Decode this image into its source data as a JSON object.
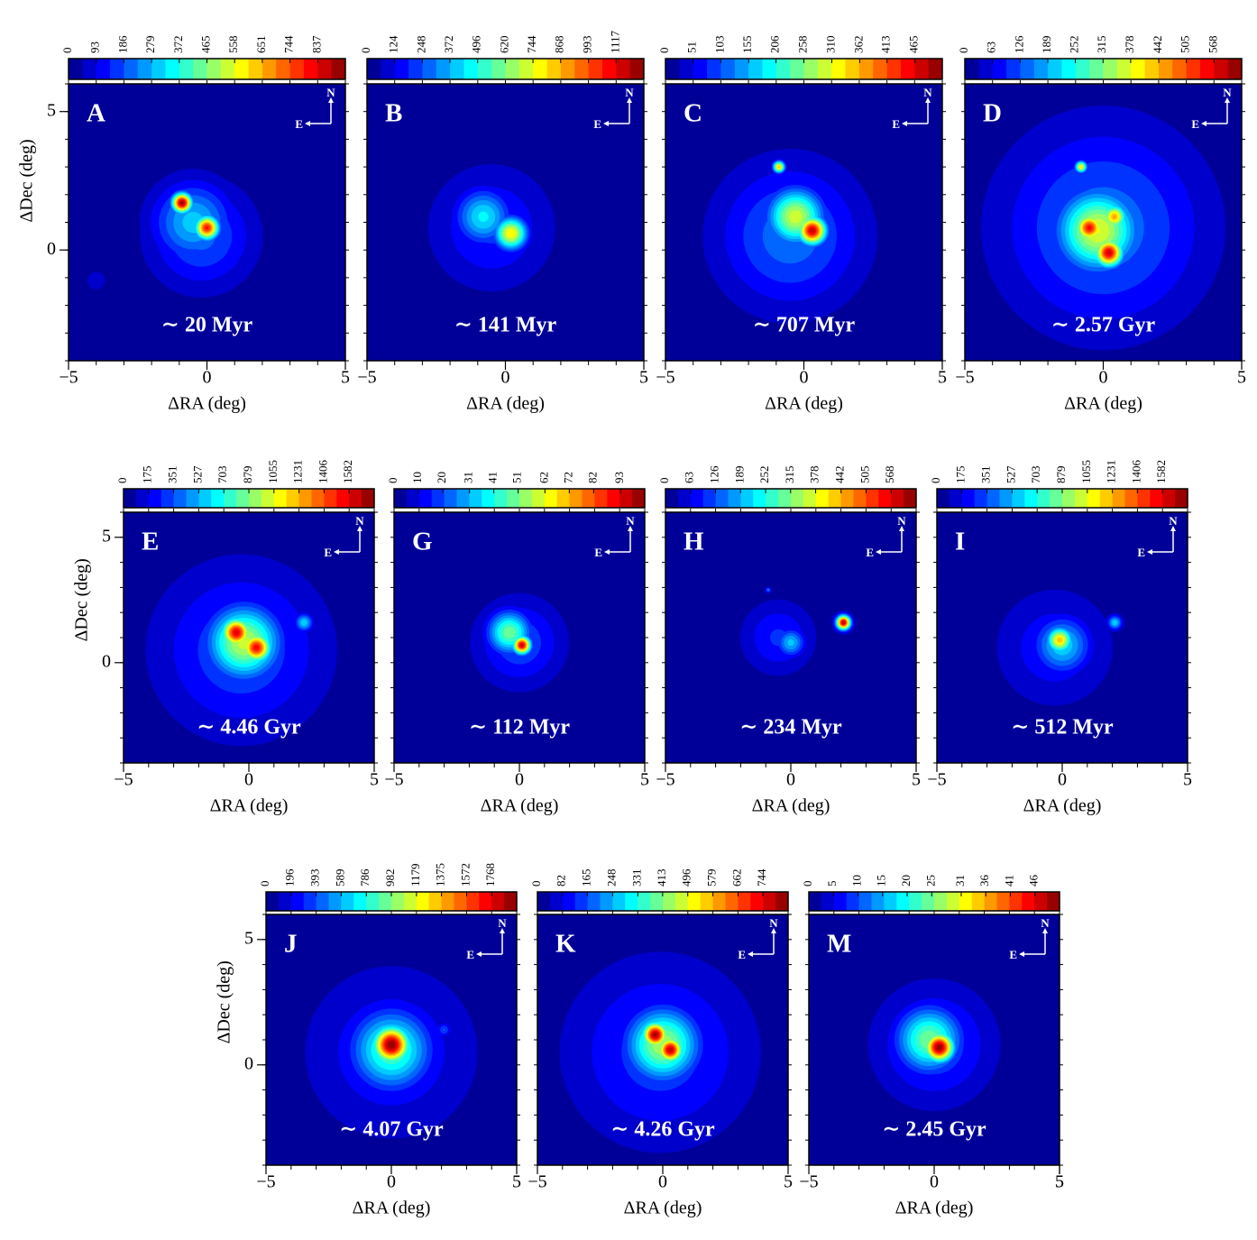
{
  "chart_data": [
    {
      "type": "heatmap",
      "panel": "A",
      "annotation": "∼ 20 Myr",
      "xlabel": "ΔRA (deg)",
      "ylabel": "ΔDec (deg)",
      "north": "N",
      "east": "E",
      "colormap": "jet",
      "xlim": [
        -5,
        5
      ],
      "ylim": [
        -4,
        6
      ],
      "xticks": [
        {
          "value": -5,
          "label": "−5"
        },
        0,
        5
      ],
      "yticks": [
        0,
        5
      ],
      "clim": [
        0,
        930
      ],
      "cticks": [
        0,
        93,
        186,
        279,
        372,
        465,
        558,
        651,
        744,
        837
      ],
      "sources": [
        {
          "ra": -0.5,
          "dec": 1,
          "density": 300,
          "size": 1.0
        },
        {
          "ra": -0.2,
          "dec": 0.5,
          "density": 200,
          "size": 1.3
        },
        {
          "ra": -0.9,
          "dec": 1.7,
          "density": 900,
          "size": 0.25
        },
        {
          "ra": 0,
          "dec": 0.8,
          "density": 800,
          "size": 0.3
        },
        {
          "ra": -4,
          "dec": -1.1,
          "density": 80,
          "size": 0.3
        }
      ]
    },
    {
      "type": "heatmap",
      "panel": "B",
      "annotation": "∼ 141 Myr",
      "xlabel": "ΔRA (deg)",
      "north": "N",
      "east": "E",
      "colormap": "jet",
      "xlim": [
        -5,
        5
      ],
      "ylim": [
        -4,
        6
      ],
      "xticks": [
        {
          "value": -5,
          "label": "−5"
        },
        0,
        5
      ],
      "clim": [
        0,
        1241
      ],
      "cticks": [
        0,
        124,
        248,
        372,
        496,
        620,
        744,
        868,
        993,
        1117
      ],
      "sources": [
        {
          "ra": -0.5,
          "dec": 0.8,
          "density": 200,
          "size": 1.5
        },
        {
          "ra": -0.8,
          "dec": 1.2,
          "density": 450,
          "size": 0.7
        },
        {
          "ra": 0.2,
          "dec": 0.6,
          "density": 800,
          "size": 0.4
        }
      ]
    },
    {
      "type": "heatmap",
      "panel": "C",
      "annotation": "∼ 707 Myr",
      "xlabel": "ΔRA (deg)",
      "north": "N",
      "east": "E",
      "colormap": "jet",
      "xlim": [
        -5,
        5
      ],
      "ylim": [
        -4,
        6
      ],
      "xticks": [
        {
          "value": -5,
          "label": "−5"
        },
        0,
        5
      ],
      "clim": [
        0,
        516
      ],
      "cticks": [
        0,
        51,
        103,
        155,
        206,
        258,
        310,
        362,
        413,
        465
      ],
      "sources": [
        {
          "ra": -0.5,
          "dec": 0.5,
          "density": 120,
          "size": 1.8
        },
        {
          "ra": -0.3,
          "dec": 1.2,
          "density": 300,
          "size": 0.7
        },
        {
          "ra": 0.3,
          "dec": 0.7,
          "density": 480,
          "size": 0.35
        },
        {
          "ra": -0.9,
          "dec": 3,
          "density": 350,
          "size": 0.15
        }
      ]
    },
    {
      "type": "heatmap",
      "panel": "D",
      "annotation": "∼ 2.57 Gyr",
      "xlabel": "ΔRA (deg)",
      "north": "N",
      "east": "E",
      "colormap": "jet",
      "xlim": [
        -5,
        5
      ],
      "ylim": [
        -4,
        6
      ],
      "xticks": [
        {
          "value": -5,
          "label": "−5"
        },
        0,
        5
      ],
      "clim": [
        0,
        631
      ],
      "cticks": [
        0,
        63,
        126,
        189,
        252,
        315,
        378,
        442,
        505,
        568
      ],
      "sources": [
        {
          "ra": 0,
          "dec": 0.8,
          "density": 150,
          "size": 2.5
        },
        {
          "ra": -0.2,
          "dec": 0.7,
          "density": 380,
          "size": 1.0
        },
        {
          "ra": -0.5,
          "dec": 0.8,
          "density": 550,
          "size": 0.35
        },
        {
          "ra": 0.2,
          "dec": -0.1,
          "density": 580,
          "size": 0.35
        },
        {
          "ra": 0.4,
          "dec": 1.2,
          "density": 450,
          "size": 0.3
        },
        {
          "ra": -0.8,
          "dec": 3,
          "density": 400,
          "size": 0.15
        }
      ]
    },
    {
      "type": "heatmap",
      "panel": "E",
      "annotation": "∼ 4.46 Gyr",
      "xlabel": "ΔRA (deg)",
      "ylabel": "ΔDec (deg)",
      "north": "N",
      "east": "E",
      "colormap": "jet",
      "xlim": [
        -5,
        5
      ],
      "ylim": [
        -4,
        6
      ],
      "xticks": [
        {
          "value": -5,
          "label": "−5"
        },
        0,
        5
      ],
      "yticks": [
        0,
        5
      ],
      "clim": [
        0,
        1758
      ],
      "cticks": [
        0,
        175,
        351,
        527,
        703,
        879,
        1055,
        1231,
        1406,
        1582
      ],
      "sources": [
        {
          "ra": -0.3,
          "dec": 0.5,
          "density": 350,
          "size": 2.3
        },
        {
          "ra": -0.2,
          "dec": 0.8,
          "density": 1000,
          "size": 1.0
        },
        {
          "ra": -0.5,
          "dec": 1.2,
          "density": 1600,
          "size": 0.4
        },
        {
          "ra": 0.3,
          "dec": 0.6,
          "density": 1550,
          "size": 0.4
        },
        {
          "ra": 2.2,
          "dec": 1.6,
          "density": 600,
          "size": 0.25
        },
        {
          "ra": -1,
          "dec": 2.9,
          "density": 200,
          "size": 0.15
        }
      ]
    },
    {
      "type": "heatmap",
      "panel": "G",
      "annotation": "∼ 112 Myr",
      "xlabel": "ΔRA (deg)",
      "north": "N",
      "east": "E",
      "colormap": "jet",
      "xlim": [
        -5,
        5
      ],
      "ylim": [
        -4,
        6
      ],
      "xticks": [
        {
          "value": -5,
          "label": "−5"
        },
        0,
        5
      ],
      "clim": [
        0,
        103
      ],
      "cticks": [
        0,
        10,
        20,
        31,
        41,
        51,
        62,
        72,
        82,
        93
      ],
      "sources": [
        {
          "ra": 0,
          "dec": 0.8,
          "density": 20,
          "size": 1.2
        },
        {
          "ra": -0.4,
          "dec": 1.2,
          "density": 50,
          "size": 0.6
        },
        {
          "ra": 0.1,
          "dec": 0.7,
          "density": 95,
          "size": 0.25
        }
      ]
    },
    {
      "type": "heatmap",
      "panel": "H",
      "annotation": "∼ 234 Myr",
      "xlabel": "ΔRA (deg)",
      "north": "N",
      "east": "E",
      "colormap": "jet",
      "xlim": [
        -5,
        5
      ],
      "ylim": [
        -4,
        6
      ],
      "xticks": [
        {
          "value": -5,
          "label": "−5"
        },
        0,
        5
      ],
      "clim": [
        0,
        631
      ],
      "cticks": [
        0,
        63,
        126,
        189,
        252,
        315,
        378,
        442,
        505,
        568
      ],
      "sources": [
        {
          "ra": -0.5,
          "dec": 1,
          "density": 100,
          "size": 1.0
        },
        {
          "ra": 0,
          "dec": 0.8,
          "density": 200,
          "size": 0.4
        },
        {
          "ra": 2.1,
          "dec": 1.6,
          "density": 600,
          "size": 0.2
        },
        {
          "ra": -0.9,
          "dec": 2.9,
          "density": 150,
          "size": 0.08
        }
      ]
    },
    {
      "type": "heatmap",
      "panel": "I",
      "annotation": "∼ 512 Myr",
      "xlabel": "ΔRA (deg)",
      "north": "N",
      "east": "E",
      "colormap": "jet",
      "xlim": [
        -5,
        5
      ],
      "ylim": [
        -4,
        6
      ],
      "xticks": [
        {
          "value": -5,
          "label": "−5"
        },
        0,
        5
      ],
      "clim": [
        0,
        1758
      ],
      "cticks": [
        0,
        175,
        351,
        527,
        703,
        879,
        1055,
        1231,
        1406,
        1582
      ],
      "sources": [
        {
          "ra": -0.3,
          "dec": 0.6,
          "density": 250,
          "size": 1.6
        },
        {
          "ra": 0,
          "dec": 0.7,
          "density": 600,
          "size": 0.8
        },
        {
          "ra": -0.1,
          "dec": 0.9,
          "density": 1200,
          "size": 0.35
        },
        {
          "ra": 2.1,
          "dec": 1.6,
          "density": 600,
          "size": 0.2
        }
      ]
    },
    {
      "type": "heatmap",
      "panel": "J",
      "annotation": "∼ 4.07 Gyr",
      "xlabel": "ΔRA (deg)",
      "ylabel": "ΔDec (deg)",
      "north": "N",
      "east": "E",
      "colormap": "jet",
      "xlim": [
        -5,
        5
      ],
      "ylim": [
        -4,
        6
      ],
      "xticks": [
        {
          "value": -5,
          "label": "−5"
        },
        0,
        5
      ],
      "yticks": [
        0,
        5
      ],
      "clim": [
        0,
        1964
      ],
      "cticks": [
        0,
        196,
        393,
        589,
        786,
        982,
        1179,
        1375,
        1572,
        1768
      ],
      "sources": [
        {
          "ra": 0,
          "dec": 0.5,
          "density": 300,
          "size": 2.3
        },
        {
          "ra": 0,
          "dec": 0.6,
          "density": 900,
          "size": 1.1
        },
        {
          "ra": 0,
          "dec": 0.8,
          "density": 1950,
          "size": 0.5
        },
        {
          "ra": 2.1,
          "dec": 1.4,
          "density": 400,
          "size": 0.2
        }
      ]
    },
    {
      "type": "heatmap",
      "panel": "K",
      "annotation": "∼ 4.26 Gyr",
      "xlabel": "ΔRA (deg)",
      "north": "N",
      "east": "E",
      "colormap": "jet",
      "xlim": [
        -5,
        5
      ],
      "ylim": [
        -4,
        6
      ],
      "xticks": [
        {
          "value": -5,
          "label": "−5"
        },
        0,
        5
      ],
      "clim": [
        0,
        827
      ],
      "cticks": [
        0,
        82,
        165,
        248,
        331,
        413,
        496,
        579,
        662,
        744
      ],
      "sources": [
        {
          "ra": -0.1,
          "dec": 0.5,
          "density": 150,
          "size": 2.5
        },
        {
          "ra": 0,
          "dec": 0.8,
          "density": 450,
          "size": 1.0
        },
        {
          "ra": -0.3,
          "dec": 1.2,
          "density": 800,
          "size": 0.35
        },
        {
          "ra": 0.3,
          "dec": 0.6,
          "density": 780,
          "size": 0.35
        }
      ]
    },
    {
      "type": "heatmap",
      "panel": "M",
      "annotation": "∼ 2.45 Gyr",
      "xlabel": "ΔRA (deg)",
      "north": "N",
      "east": "E",
      "colormap": "jet",
      "xlim": [
        -5,
        5
      ],
      "ylim": [
        -4,
        6
      ],
      "xticks": [
        {
          "value": -5,
          "label": "−5"
        },
        0,
        5,
        {
          "value": 5,
          "label": "5"
        }
      ],
      "clim": [
        0,
        51
      ],
      "cticks": [
        0,
        5,
        10,
        15,
        20,
        25,
        31,
        36,
        41,
        46
      ],
      "sources": [
        {
          "ra": 0,
          "dec": 0.8,
          "density": 10,
          "size": 1.6
        },
        {
          "ra": -0.2,
          "dec": 1,
          "density": 25,
          "size": 0.9
        },
        {
          "ra": 0.2,
          "dec": 0.7,
          "density": 50,
          "size": 0.4
        }
      ]
    }
  ]
}
